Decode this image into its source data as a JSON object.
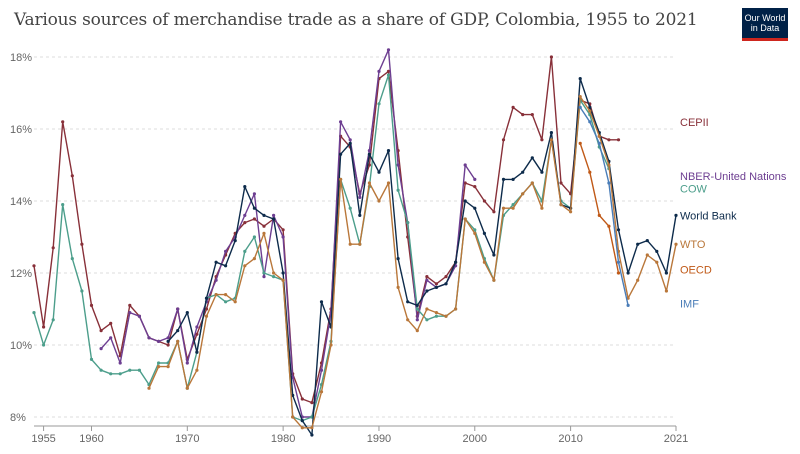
{
  "header": {
    "title": "Various sources of merchandise trade as a share of GDP, Colombia, 1955 to 2021",
    "logo_line1": "Our World",
    "logo_line2": "in Data"
  },
  "chart_data": {
    "type": "line",
    "title": "Various sources of merchandise trade as a share of GDP, Colombia, 1955 to 2021",
    "xlabel": "",
    "ylabel": "",
    "xlim": [
      1954,
      2021
    ],
    "ylim": [
      8,
      18
    ],
    "y_ticks": [
      8,
      10,
      12,
      14,
      16,
      18
    ],
    "y_tick_format": "%",
    "x_ticks": [
      1955,
      1960,
      1970,
      1980,
      1990,
      2000,
      2010,
      2021
    ],
    "grid": "horizontal dashed",
    "legend": "right, labels at line ends",
    "series": [
      {
        "name": "CEPII",
        "color": "#883039",
        "label_y": 16.2,
        "points": [
          [
            1954,
            12.2
          ],
          [
            1955,
            10.5
          ],
          [
            1956,
            12.7
          ],
          [
            1957,
            16.2
          ],
          [
            1958,
            14.7
          ],
          [
            1959,
            12.8
          ],
          [
            1960,
            11.1
          ],
          [
            1961,
            10.4
          ],
          [
            1962,
            10.6
          ],
          [
            1963,
            9.7
          ],
          [
            1964,
            11.1
          ],
          [
            1965,
            10.8
          ],
          [
            1966,
            10.2
          ],
          [
            1967,
            10.1
          ],
          [
            1968,
            10.0
          ],
          [
            1969,
            11.0
          ],
          [
            1970,
            9.6
          ],
          [
            1971,
            10.3
          ],
          [
            1972,
            11.0
          ],
          [
            1973,
            11.9
          ],
          [
            1974,
            12.5
          ],
          [
            1975,
            13.1
          ],
          [
            1976,
            13.4
          ],
          [
            1977,
            13.5
          ],
          [
            1978,
            13.3
          ],
          [
            1979,
            13.5
          ],
          [
            1980,
            13.2
          ],
          [
            1981,
            9.2
          ],
          [
            1982,
            8.5
          ],
          [
            1983,
            8.4
          ],
          [
            1984,
            9.5
          ],
          [
            1985,
            11.0
          ],
          [
            1986,
            15.8
          ],
          [
            1987,
            15.5
          ],
          [
            1988,
            14.2
          ],
          [
            1989,
            15.0
          ],
          [
            1990,
            17.4
          ],
          [
            1991,
            17.6
          ],
          [
            1992,
            15.4
          ],
          [
            1993,
            13.0
          ],
          [
            1994,
            10.8
          ],
          [
            1995,
            11.9
          ],
          [
            1996,
            11.7
          ],
          [
            1997,
            11.9
          ],
          [
            1998,
            12.3
          ],
          [
            1999,
            14.5
          ],
          [
            2000,
            14.4
          ],
          [
            2001,
            14.0
          ],
          [
            2002,
            13.7
          ],
          [
            2003,
            15.7
          ],
          [
            2004,
            16.6
          ],
          [
            2005,
            16.4
          ],
          [
            2006,
            16.4
          ],
          [
            2007,
            15.7
          ],
          [
            2008,
            18.0
          ],
          [
            2009,
            14.5
          ],
          [
            2010,
            14.2
          ],
          [
            2011,
            16.8
          ],
          [
            2012,
            16.7
          ],
          [
            2013,
            15.8
          ],
          [
            2014,
            15.7
          ],
          [
            2015,
            15.7
          ]
        ]
      },
      {
        "name": "NBER-United Nations",
        "color": "#6d3e91",
        "label_y": 14.7,
        "points": [
          [
            1961,
            9.9
          ],
          [
            1962,
            10.2
          ],
          [
            1963,
            9.5
          ],
          [
            1964,
            10.9
          ],
          [
            1965,
            10.8
          ],
          [
            1966,
            10.2
          ],
          [
            1967,
            10.1
          ],
          [
            1968,
            10.2
          ],
          [
            1969,
            11.0
          ],
          [
            1970,
            9.5
          ],
          [
            1971,
            10.5
          ],
          [
            1972,
            11.2
          ],
          [
            1973,
            11.8
          ],
          [
            1974,
            12.6
          ],
          [
            1975,
            13.0
          ],
          [
            1976,
            13.6
          ],
          [
            1977,
            14.2
          ],
          [
            1978,
            11.9
          ],
          [
            1979,
            13.6
          ],
          [
            1980,
            13.0
          ],
          [
            1981,
            9.1
          ],
          [
            1982,
            8.0
          ],
          [
            1983,
            8.0
          ],
          [
            1984,
            9.3
          ],
          [
            1985,
            10.9
          ],
          [
            1986,
            16.2
          ],
          [
            1987,
            15.7
          ],
          [
            1988,
            14.1
          ],
          [
            1989,
            15.4
          ],
          [
            1990,
            17.6
          ],
          [
            1991,
            18.2
          ],
          [
            1992,
            15.0
          ],
          [
            1993,
            13.4
          ],
          [
            1994,
            10.7
          ],
          [
            1995,
            11.8
          ],
          [
            1996,
            11.6
          ],
          [
            1997,
            11.7
          ],
          [
            1998,
            12.2
          ],
          [
            1999,
            15.0
          ],
          [
            2000,
            14.6
          ]
        ]
      },
      {
        "name": "COW",
        "color": "#4c9e8b",
        "label_y": 14.35,
        "points": [
          [
            1954,
            10.9
          ],
          [
            1955,
            10.0
          ],
          [
            1956,
            10.7
          ],
          [
            1957,
            13.9
          ],
          [
            1958,
            12.4
          ],
          [
            1959,
            11.5
          ],
          [
            1960,
            9.6
          ],
          [
            1961,
            9.3
          ],
          [
            1962,
            9.2
          ],
          [
            1963,
            9.2
          ],
          [
            1964,
            9.3
          ],
          [
            1965,
            9.3
          ],
          [
            1966,
            8.9
          ],
          [
            1967,
            9.5
          ],
          [
            1968,
            9.5
          ],
          [
            1969,
            10.1
          ],
          [
            1970,
            8.8
          ],
          [
            1971,
            9.8
          ],
          [
            1972,
            11.3
          ],
          [
            1973,
            11.4
          ],
          [
            1974,
            11.2
          ],
          [
            1975,
            11.3
          ],
          [
            1976,
            12.6
          ],
          [
            1977,
            13.0
          ],
          [
            1978,
            12.0
          ],
          [
            1979,
            11.9
          ],
          [
            1980,
            11.8
          ],
          [
            1981,
            8.0
          ],
          [
            1982,
            7.9
          ],
          [
            1983,
            8.0
          ],
          [
            1984,
            8.9
          ],
          [
            1985,
            10.1
          ],
          [
            1986,
            14.6
          ],
          [
            1987,
            13.8
          ],
          [
            1988,
            12.8
          ],
          [
            1989,
            14.4
          ],
          [
            1990,
            16.7
          ],
          [
            1991,
            17.5
          ],
          [
            1992,
            14.3
          ],
          [
            1993,
            13.4
          ],
          [
            1994,
            11.0
          ],
          [
            1995,
            10.7
          ],
          [
            1996,
            10.8
          ],
          [
            1997,
            10.8
          ],
          [
            1998,
            11.0
          ],
          [
            1999,
            13.5
          ],
          [
            2000,
            13.2
          ],
          [
            2001,
            12.4
          ],
          [
            2002,
            11.8
          ],
          [
            2003,
            13.6
          ],
          [
            2004,
            13.9
          ],
          [
            2005,
            14.2
          ],
          [
            2006,
            14.5
          ],
          [
            2007,
            14.0
          ],
          [
            2008,
            15.7
          ],
          [
            2009,
            14.0
          ],
          [
            2010,
            13.8
          ],
          [
            2011,
            16.8
          ],
          [
            2012,
            16.4
          ],
          [
            2013,
            15.5
          ],
          [
            2014,
            14.9
          ]
        ]
      },
      {
        "name": "World Bank",
        "color": "#0d2b4b",
        "label_y": 13.6,
        "points": [
          [
            1968,
            10.1
          ],
          [
            1969,
            10.4
          ],
          [
            1970,
            10.9
          ],
          [
            1971,
            9.8
          ],
          [
            1972,
            11.3
          ],
          [
            1973,
            12.3
          ],
          [
            1974,
            12.2
          ],
          [
            1975,
            12.9
          ],
          [
            1976,
            14.4
          ],
          [
            1977,
            13.8
          ],
          [
            1978,
            13.6
          ],
          [
            1979,
            13.5
          ],
          [
            1980,
            12.0
          ],
          [
            1981,
            8.6
          ],
          [
            1982,
            7.9
          ],
          [
            1983,
            7.5
          ],
          [
            1984,
            11.2
          ],
          [
            1985,
            10.5
          ],
          [
            1986,
            15.3
          ],
          [
            1987,
            15.6
          ],
          [
            1988,
            13.6
          ],
          [
            1989,
            15.3
          ],
          [
            1990,
            14.8
          ],
          [
            1991,
            15.4
          ],
          [
            1992,
            12.4
          ],
          [
            1993,
            11.2
          ],
          [
            1994,
            11.1
          ],
          [
            1995,
            11.5
          ],
          [
            1996,
            11.6
          ],
          [
            1997,
            11.7
          ],
          [
            1998,
            12.3
          ],
          [
            1999,
            14.0
          ],
          [
            2000,
            13.8
          ],
          [
            2001,
            13.1
          ],
          [
            2002,
            12.5
          ],
          [
            2003,
            14.6
          ],
          [
            2004,
            14.6
          ],
          [
            2005,
            14.8
          ],
          [
            2006,
            15.2
          ],
          [
            2007,
            14.8
          ],
          [
            2008,
            15.9
          ],
          [
            2009,
            13.9
          ],
          [
            2010,
            13.8
          ],
          [
            2011,
            17.4
          ],
          [
            2012,
            16.6
          ],
          [
            2013,
            15.9
          ],
          [
            2014,
            15.1
          ],
          [
            2015,
            13.2
          ],
          [
            2016,
            12.0
          ],
          [
            2017,
            12.8
          ],
          [
            2018,
            12.9
          ],
          [
            2019,
            12.6
          ],
          [
            2020,
            12.0
          ],
          [
            2021,
            13.6
          ]
        ]
      },
      {
        "name": "WTO",
        "color": "#b9773a",
        "label_y": 12.8,
        "points": [
          [
            1966,
            8.8
          ],
          [
            1967,
            9.4
          ],
          [
            1968,
            9.4
          ],
          [
            1969,
            10.1
          ],
          [
            1970,
            8.8
          ],
          [
            1971,
            9.3
          ],
          [
            1972,
            10.8
          ],
          [
            1973,
            11.4
          ],
          [
            1974,
            11.4
          ],
          [
            1975,
            11.2
          ],
          [
            1976,
            12.2
          ],
          [
            1977,
            12.4
          ],
          [
            1978,
            13.1
          ],
          [
            1979,
            12.0
          ],
          [
            1980,
            11.8
          ],
          [
            1981,
            8.0
          ],
          [
            1982,
            7.7
          ],
          [
            1983,
            7.7
          ],
          [
            1984,
            8.7
          ],
          [
            1985,
            10.0
          ],
          [
            1986,
            14.6
          ],
          [
            1987,
            12.8
          ],
          [
            1988,
            12.8
          ],
          [
            1989,
            14.5
          ],
          [
            1990,
            14.0
          ],
          [
            1991,
            14.5
          ],
          [
            1992,
            11.6
          ],
          [
            1993,
            10.7
          ],
          [
            1994,
            10.4
          ],
          [
            1995,
            11.0
          ],
          [
            1996,
            10.9
          ],
          [
            1997,
            10.8
          ],
          [
            1998,
            11.0
          ],
          [
            1999,
            13.5
          ],
          [
            2000,
            13.1
          ],
          [
            2001,
            12.3
          ],
          [
            2002,
            11.8
          ],
          [
            2003,
            13.8
          ],
          [
            2004,
            13.8
          ],
          [
            2005,
            14.2
          ],
          [
            2006,
            14.5
          ],
          [
            2007,
            13.8
          ],
          [
            2008,
            15.7
          ],
          [
            2009,
            13.9
          ],
          [
            2010,
            13.7
          ],
          [
            2011,
            16.9
          ],
          [
            2012,
            16.5
          ],
          [
            2013,
            15.8
          ],
          [
            2014,
            15.0
          ],
          [
            2015,
            12.6
          ],
          [
            2016,
            11.3
          ],
          [
            2017,
            11.8
          ],
          [
            2018,
            12.5
          ],
          [
            2019,
            12.3
          ],
          [
            2020,
            11.5
          ],
          [
            2021,
            12.8
          ]
        ]
      },
      {
        "name": "OECD",
        "color": "#c05917",
        "label_y": 12.1,
        "points": [
          [
            2011,
            15.6
          ],
          [
            2012,
            14.8
          ],
          [
            2013,
            13.6
          ],
          [
            2014,
            13.3
          ],
          [
            2015,
            12.0
          ]
        ]
      },
      {
        "name": "IMF",
        "color": "#4a7db8",
        "label_y": 11.15,
        "points": [
          [
            2011,
            16.6
          ],
          [
            2012,
            16.2
          ],
          [
            2013,
            15.6
          ],
          [
            2014,
            14.5
          ],
          [
            2015,
            12.3
          ],
          [
            2016,
            11.1
          ]
        ]
      }
    ]
  }
}
